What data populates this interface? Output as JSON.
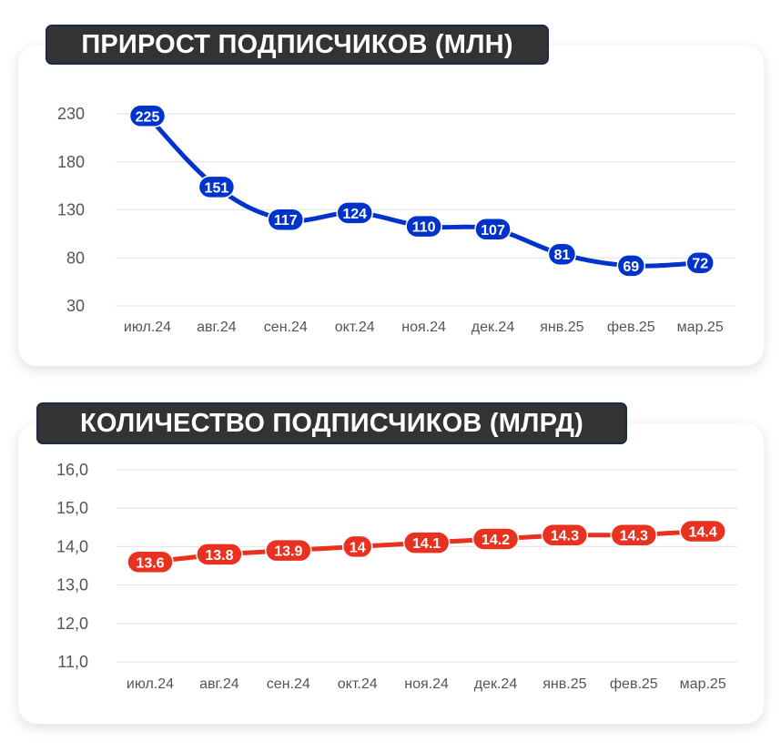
{
  "chart_data": [
    {
      "type": "line",
      "title": "ПРИРОСТ ПОДПИСЧИКОВ (МЛН)",
      "xlabel": "",
      "ylabel": "",
      "categories": [
        "июл.24",
        "авг.24",
        "сен.24",
        "окт.24",
        "ноя.24",
        "дек.24",
        "янв.25",
        "фев.25",
        "мар.25"
      ],
      "series": [
        {
          "name": "Прирост подписчиков (млн)",
          "values": [
            225,
            151,
            117,
            124,
            110,
            107,
            81,
            69,
            72
          ],
          "color": "#0033cc"
        }
      ],
      "yticks": [
        "230",
        "180",
        "130",
        "80",
        "30"
      ],
      "ylim": [
        30,
        230
      ],
      "grid": true,
      "legend": "none",
      "data_labels": true
    },
    {
      "type": "line",
      "title": "КОЛИЧЕСТВО ПОДПИСЧИКОВ (МЛРД)",
      "xlabel": "",
      "ylabel": "",
      "categories": [
        "июл.24",
        "авг.24",
        "сен.24",
        "окт.24",
        "ноя.24",
        "дек.24",
        "янв.25",
        "фев.25",
        "мар.25"
      ],
      "series": [
        {
          "name": "Количество подписчиков (млрд)",
          "values": [
            13.6,
            13.8,
            13.9,
            14,
            14.1,
            14.2,
            14.3,
            14.3,
            14.4
          ],
          "value_labels": [
            "13.6",
            "13.8",
            "13.9",
            "14",
            "14.1",
            "14.2",
            "14.3",
            "14.3",
            "14.4"
          ],
          "color": "#e8311f"
        }
      ],
      "yticks": [
        "16,0",
        "15,0",
        "14,0",
        "13,0",
        "12,0",
        "11,0"
      ],
      "ylim": [
        11,
        16
      ],
      "grid": true,
      "legend": "none",
      "data_labels": true
    }
  ],
  "charts": {
    "growth": {
      "title": "ПРИРОСТ ПОДПИСЧИКОВ (МЛН)"
    },
    "total": {
      "title": "КОЛИЧЕСТВО ПОДПИСЧИКОВ (МЛРД)"
    }
  },
  "colors": {
    "growth_line": "#0033cc",
    "total_line": "#e8311f",
    "badge_bg": "#333333",
    "badge_border": "#1c2b4a",
    "grid": "#e6e6e6",
    "tick_text": "#555555"
  }
}
